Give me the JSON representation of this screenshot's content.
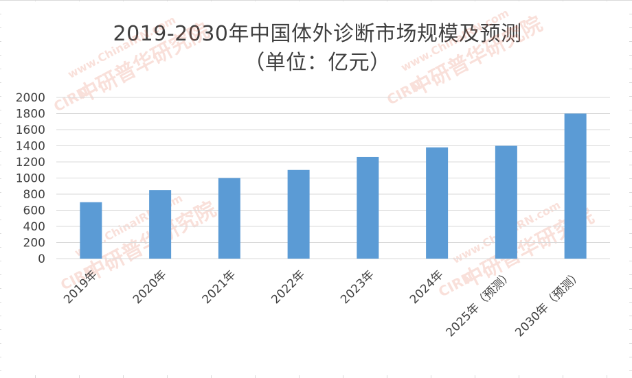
{
  "chart_data": {
    "type": "bar",
    "title_line1": "2019-2030年中国体外诊断市场规模及预测",
    "title_line2": "（单位：亿元）",
    "categories": [
      "2019年",
      "2020年",
      "2021年",
      "2022年",
      "2023年",
      "2024年",
      "2025年（预测）",
      "2030年（预测）"
    ],
    "values": [
      700,
      850,
      1000,
      1100,
      1260,
      1380,
      1400,
      1800
    ],
    "xlabel": "",
    "ylabel": "",
    "ylim": [
      0,
      2000
    ],
    "yticks": [
      0,
      200,
      400,
      600,
      800,
      1000,
      1200,
      1400,
      1600,
      1800,
      2000
    ],
    "grid": true,
    "legend": "none",
    "bar_color": "#5b9bd5",
    "grid_color": "#d9d9d9",
    "text_color": "#404040"
  },
  "watermark": {
    "logo_text": "CIRN",
    "url_text": "www.ChinaIRN.com",
    "brand_text": "中研普华研究院"
  }
}
